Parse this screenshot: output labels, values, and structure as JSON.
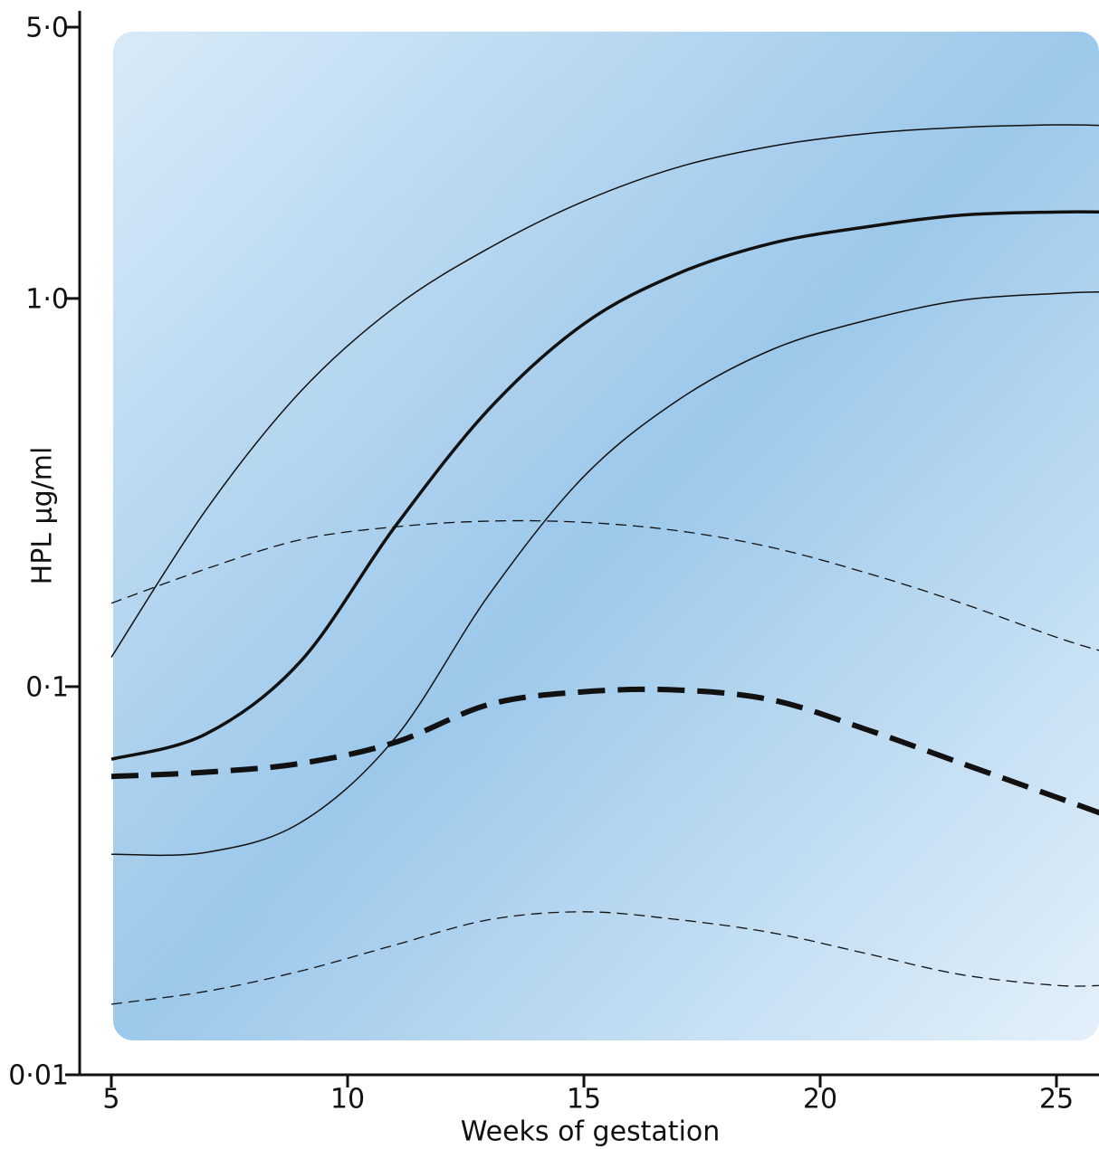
{
  "chart_data": {
    "type": "line",
    "x_label": "Weeks of gestation",
    "y_label": "HPL μg/ml",
    "log_y": true,
    "xlim": [
      4.33,
      25.9
    ],
    "ylim": [
      0.01,
      5.0
    ],
    "xticks": [
      5,
      10,
      15,
      20,
      25
    ],
    "yticks": [
      {
        "value": 0.01,
        "label": "0·01"
      },
      {
        "value": 0.1,
        "label": "0·1"
      },
      {
        "value": 1.0,
        "label": "1·0"
      },
      {
        "value": 5.0,
        "label": "5·0"
      }
    ],
    "x": [
      5,
      7,
      9,
      11,
      13,
      15,
      17,
      19,
      21,
      23,
      25,
      26
    ],
    "series": [
      {
        "color": "#111111",
        "style": "solid",
        "width": 1.5,
        "values": [
          0.119,
          0.285,
          0.575,
          0.95,
          1.35,
          1.78,
          2.18,
          2.47,
          2.66,
          2.76,
          2.8,
          2.79
        ]
      },
      {
        "color": "#111111",
        "style": "solid",
        "width": 3.5,
        "values": [
          0.065,
          0.0755,
          0.116,
          0.258,
          0.52,
          0.86,
          1.16,
          1.39,
          1.53,
          1.64,
          1.67,
          1.67
        ]
      },
      {
        "color": "#111111",
        "style": "solid",
        "width": 1.5,
        "values": [
          0.037,
          0.0374,
          0.0446,
          0.0736,
          0.173,
          0.348,
          0.548,
          0.74,
          0.88,
          0.99,
          1.03,
          1.04
        ]
      },
      {
        "color": "#111111",
        "style": "dashed",
        "width": 1.3,
        "values": [
          0.164,
          0.201,
          0.239,
          0.258,
          0.267,
          0.265,
          0.252,
          0.228,
          0.196,
          0.164,
          0.134,
          0.123
        ]
      },
      {
        "color": "#111111",
        "style": "dashed",
        "width": 6,
        "values": [
          0.0587,
          0.0602,
          0.0634,
          0.0718,
          0.09,
          0.097,
          0.098,
          0.0923,
          0.0774,
          0.0634,
          0.0519,
          0.0469
        ]
      },
      {
        "color": "#111111",
        "style": "dashed",
        "width": 1.3,
        "values": [
          0.0152,
          0.0164,
          0.0185,
          0.0216,
          0.0251,
          0.0263,
          0.0251,
          0.0232,
          0.0205,
          0.0181,
          0.017,
          0.017
        ]
      }
    ]
  }
}
